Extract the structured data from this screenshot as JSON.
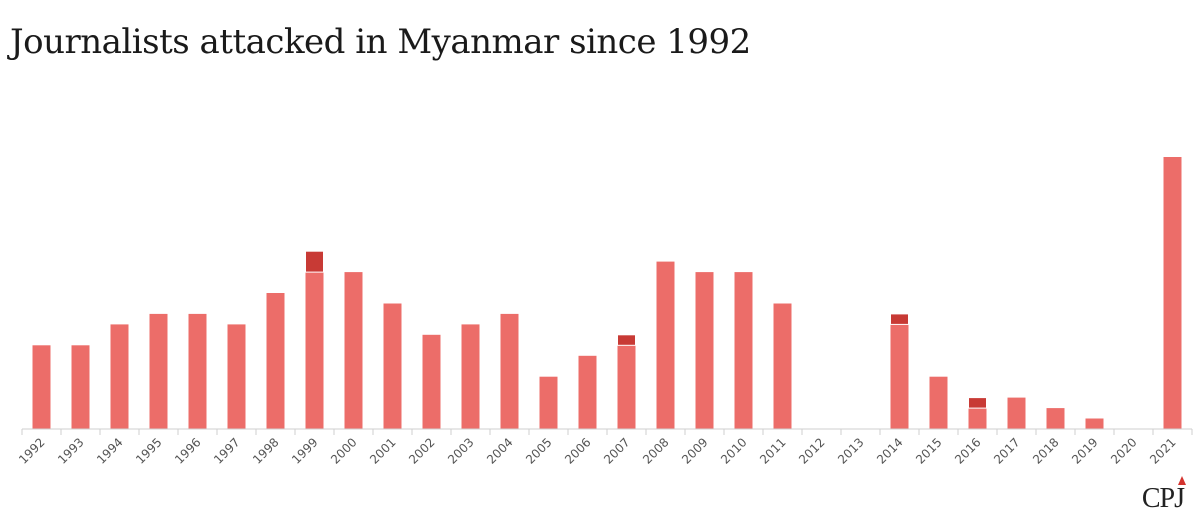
{
  "title": "Journalists attacked in Myanmar since 1992",
  "logo_text": "CPJ",
  "colors": {
    "primary": "#ec6d69",
    "secondary": "#c83a35",
    "axis": "#cfcfcf"
  },
  "chart_data": {
    "type": "bar",
    "stacked": true,
    "categories": [
      "1992",
      "1993",
      "1994",
      "1995",
      "1996",
      "1997",
      "1998",
      "1999",
      "2000",
      "2001",
      "2002",
      "2003",
      "2004",
      "2005",
      "2006",
      "2007",
      "2008",
      "2009",
      "2010",
      "2011",
      "2012",
      "2013",
      "2014",
      "2015",
      "2016",
      "2017",
      "2018",
      "2019",
      "2020",
      "2021"
    ],
    "series": [
      {
        "color": "#ec6d69",
        "values": [
          8,
          8,
          10,
          11,
          11,
          10,
          13,
          15,
          15,
          12,
          9,
          10,
          11,
          5,
          7,
          8,
          16,
          15,
          15,
          12,
          0,
          0,
          10,
          5,
          2,
          3,
          2,
          1,
          0,
          26
        ]
      },
      {
        "color": "#c83a35",
        "values": [
          0,
          0,
          0,
          0,
          0,
          0,
          0,
          2,
          0,
          0,
          0,
          0,
          0,
          0,
          0,
          1,
          0,
          0,
          0,
          0,
          0,
          0,
          1,
          0,
          1,
          0,
          0,
          0,
          0,
          0
        ]
      }
    ],
    "ylim": [
      0,
      26
    ],
    "xlabel": "",
    "ylabel": "",
    "grid": false
  }
}
